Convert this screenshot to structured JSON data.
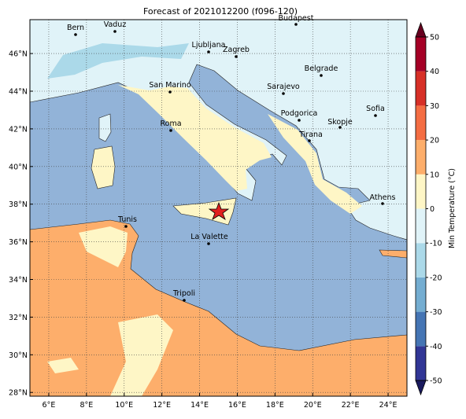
{
  "title": "Forecast of 2021012200 (f096-120)",
  "map": {
    "xlim": [
      5,
      25
    ],
    "ylim": [
      27.8,
      47.8
    ],
    "xticks": [
      {
        "value": 6,
        "label": "6°E"
      },
      {
        "value": 8,
        "label": "8°E"
      },
      {
        "value": 10,
        "label": "10°E"
      },
      {
        "value": 12,
        "label": "12°E"
      },
      {
        "value": 14,
        "label": "14°E"
      },
      {
        "value": 16,
        "label": "16°E"
      },
      {
        "value": 18,
        "label": "18°E"
      },
      {
        "value": 20,
        "label": "20°E"
      },
      {
        "value": 22,
        "label": "22°E"
      },
      {
        "value": 24,
        "label": "24°E"
      }
    ],
    "yticks": [
      {
        "value": 28,
        "label": "28°N"
      },
      {
        "value": 30,
        "label": "30°N"
      },
      {
        "value": 32,
        "label": "32°N"
      },
      {
        "value": 34,
        "label": "34°N"
      },
      {
        "value": 36,
        "label": "36°N"
      },
      {
        "value": 38,
        "label": "38°N"
      },
      {
        "value": 40,
        "label": "40°N"
      },
      {
        "value": 42,
        "label": "42°N"
      },
      {
        "value": 44,
        "label": "44°N"
      },
      {
        "value": 46,
        "label": "46°N"
      }
    ],
    "cities": [
      "Bern",
      "Vaduz",
      "Budapest",
      "Ljubljana",
      "Zagreb",
      "San Marino",
      "Belgrade",
      "Sarajevo",
      "Roma",
      "Podgorica",
      "Skopje",
      "Sofia",
      "Tirana",
      "Athens",
      "Tunis",
      "La Valette",
      "Tripoli"
    ]
  },
  "colorbar": {
    "label": "Min Temperature (°C)",
    "lim": [
      -50,
      50
    ],
    "ticks": [
      -50,
      -40,
      -30,
      -20,
      -10,
      0,
      10,
      20,
      30,
      40,
      50
    ],
    "colors": [
      "#313695",
      "#4575b4",
      "#74add1",
      "#abd9e9",
      "#e0f3f8",
      "#fef6c6",
      "#fdae6b",
      "#f46d43",
      "#d73027",
      "#a50026"
    ],
    "under": "#1a1a5e",
    "over": "#67001f"
  }
}
